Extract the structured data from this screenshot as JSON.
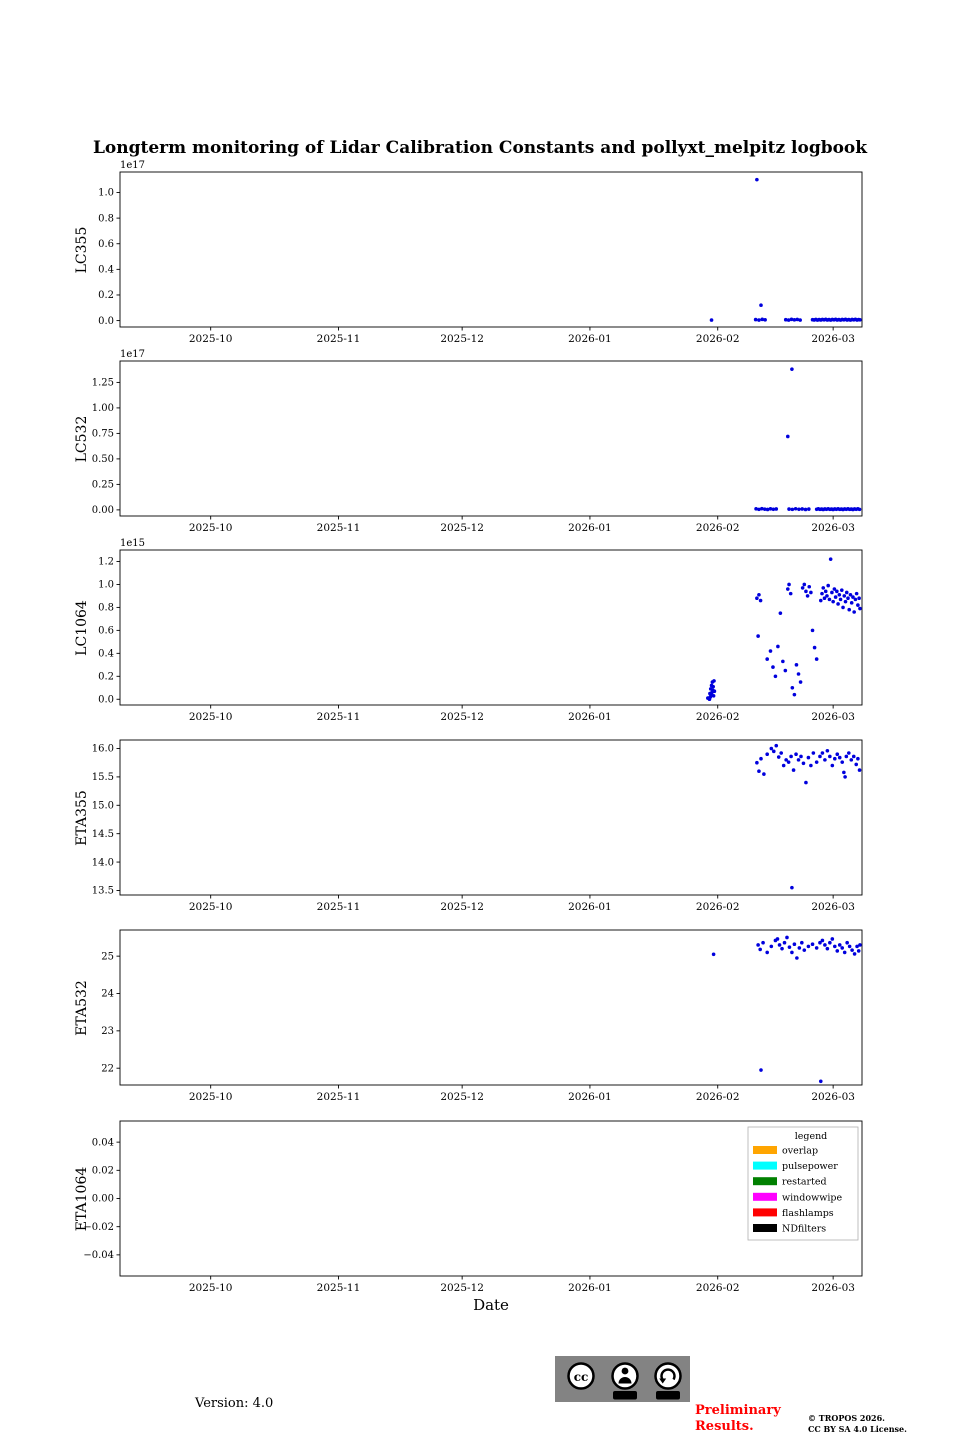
{
  "title": "Longterm monitoring of Lidar Calibration Constants and pollyxt_melpitz logbook",
  "xlabel": "Date",
  "point_color": "#0000dd",
  "x_axis": {
    "xlim": [
      0,
      180
    ],
    "ticks": [
      {
        "pos": 22,
        "label": "2025-10"
      },
      {
        "pos": 53,
        "label": "2025-11"
      },
      {
        "pos": 83,
        "label": "2025-12"
      },
      {
        "pos": 114,
        "label": "2026-01"
      },
      {
        "pos": 145,
        "label": "2026-02"
      },
      {
        "pos": 173,
        "label": "2026-03"
      }
    ]
  },
  "footer": {
    "version": "Version: 4.0",
    "preliminary_line1": "Preliminary",
    "preliminary_line2": "Results.",
    "copyright_line1": "© TROPOS 2026.",
    "copyright_line2": "CC BY SA 4.0 License.",
    "cc_label": "cc",
    "cc_by": "BY",
    "cc_sa": "SA"
  },
  "chart_data": [
    {
      "type": "scatter",
      "ylabel": "LC355",
      "offset_text": "1e17",
      "ylim": [
        -0.05,
        1.16
      ],
      "ytick_values": [
        0.0,
        0.2,
        0.4,
        0.6,
        0.8,
        1.0
      ],
      "ytick_labels": [
        "0.0",
        "0.2",
        "0.4",
        "0.6",
        "0.8",
        "1.0"
      ],
      "points": [
        [
          143.5,
          0.004
        ],
        [
          154.5,
          1.1
        ],
        [
          155.5,
          0.12
        ],
        [
          154.2,
          0.008
        ],
        [
          155.0,
          0.004
        ],
        [
          155.8,
          0.01
        ],
        [
          156.5,
          0.006
        ],
        [
          161.5,
          0.007
        ],
        [
          162.2,
          0.004
        ],
        [
          162.9,
          0.01
        ],
        [
          163.6,
          0.006
        ],
        [
          164.3,
          0.009
        ],
        [
          165.0,
          0.004
        ],
        [
          168.0,
          0.007
        ],
        [
          168.4,
          0.005
        ],
        [
          168.8,
          0.009
        ],
        [
          169.2,
          0.004
        ],
        [
          169.6,
          0.008
        ],
        [
          170.0,
          0.005
        ],
        [
          170.4,
          0.009
        ],
        [
          170.8,
          0.006
        ],
        [
          171.2,
          0.01
        ],
        [
          171.6,
          0.005
        ],
        [
          172.0,
          0.008
        ],
        [
          172.4,
          0.004
        ],
        [
          172.8,
          0.009
        ],
        [
          173.2,
          0.006
        ],
        [
          173.6,
          0.01
        ],
        [
          174.0,
          0.005
        ],
        [
          174.4,
          0.008
        ],
        [
          174.8,
          0.004
        ],
        [
          175.2,
          0.009
        ],
        [
          175.6,
          0.006
        ],
        [
          176.0,
          0.01
        ],
        [
          176.4,
          0.005
        ],
        [
          176.8,
          0.008
        ],
        [
          177.2,
          0.004
        ],
        [
          177.6,
          0.009
        ],
        [
          178.0,
          0.006
        ],
        [
          178.4,
          0.01
        ],
        [
          178.8,
          0.005
        ],
        [
          179.2,
          0.008
        ],
        [
          179.5,
          0.006
        ]
      ]
    },
    {
      "type": "scatter",
      "ylabel": "LC532",
      "offset_text": "1e17",
      "ylim": [
        -0.06,
        1.46
      ],
      "ytick_values": [
        0.0,
        0.25,
        0.5,
        0.75,
        1.0,
        1.25
      ],
      "ytick_labels": [
        "0.00",
        "0.25",
        "0.50",
        "0.75",
        "1.00",
        "1.25"
      ],
      "points": [
        [
          162.0,
          0.72
        ],
        [
          163.0,
          1.38
        ],
        [
          154.3,
          0.01
        ],
        [
          155.0,
          0.005
        ],
        [
          155.7,
          0.012
        ],
        [
          156.4,
          0.007
        ],
        [
          157.1,
          0.004
        ],
        [
          157.8,
          0.01
        ],
        [
          158.5,
          0.006
        ],
        [
          159.2,
          0.009
        ],
        [
          162.3,
          0.008
        ],
        [
          163.1,
          0.005
        ],
        [
          163.9,
          0.011
        ],
        [
          164.7,
          0.006
        ],
        [
          165.5,
          0.009
        ],
        [
          166.3,
          0.004
        ],
        [
          167.1,
          0.008
        ],
        [
          169.0,
          0.006
        ],
        [
          169.4,
          0.01
        ],
        [
          169.8,
          0.005
        ],
        [
          170.2,
          0.008
        ],
        [
          170.6,
          0.004
        ],
        [
          171.0,
          0.009
        ],
        [
          171.4,
          0.006
        ],
        [
          171.8,
          0.011
        ],
        [
          172.2,
          0.005
        ],
        [
          172.6,
          0.008
        ],
        [
          173.0,
          0.004
        ],
        [
          173.4,
          0.009
        ],
        [
          173.8,
          0.006
        ],
        [
          174.2,
          0.01
        ],
        [
          174.6,
          0.005
        ],
        [
          175.0,
          0.008
        ],
        [
          175.4,
          0.004
        ],
        [
          175.8,
          0.009
        ],
        [
          176.2,
          0.006
        ],
        [
          176.6,
          0.01
        ],
        [
          177.0,
          0.005
        ],
        [
          177.4,
          0.008
        ],
        [
          177.8,
          0.004
        ],
        [
          178.2,
          0.009
        ],
        [
          178.6,
          0.006
        ],
        [
          179.0,
          0.01
        ],
        [
          179.4,
          0.005
        ]
      ]
    },
    {
      "type": "scatter",
      "ylabel": "LC1064",
      "offset_text": "1e15",
      "ylim": [
        -0.05,
        1.3
      ],
      "ytick_values": [
        0.0,
        0.2,
        0.4,
        0.6,
        0.8,
        1.0,
        1.2
      ],
      "ytick_labels": [
        "0.0",
        "0.2",
        "0.4",
        "0.6",
        "0.8",
        "1.0",
        "1.2"
      ],
      "points": [
        [
          142.6,
          0.01
        ],
        [
          143.0,
          0.0
        ],
        [
          143.1,
          0.05
        ],
        [
          143.2,
          0.02
        ],
        [
          143.3,
          0.09
        ],
        [
          143.4,
          0.04
        ],
        [
          143.5,
          0.12
        ],
        [
          143.6,
          0.06
        ],
        [
          143.7,
          0.15
        ],
        [
          143.8,
          0.08
        ],
        [
          143.9,
          0.11
        ],
        [
          144.0,
          0.03
        ],
        [
          144.1,
          0.16
        ],
        [
          144.2,
          0.07
        ],
        [
          154.5,
          0.88
        ],
        [
          155.0,
          0.91
        ],
        [
          155.4,
          0.86
        ],
        [
          154.8,
          0.55
        ],
        [
          157.0,
          0.35
        ],
        [
          157.8,
          0.42
        ],
        [
          158.4,
          0.28
        ],
        [
          159.0,
          0.2
        ],
        [
          159.6,
          0.46
        ],
        [
          160.2,
          0.75
        ],
        [
          160.8,
          0.33
        ],
        [
          161.4,
          0.25
        ],
        [
          162.0,
          0.96
        ],
        [
          162.3,
          1.0
        ],
        [
          162.7,
          0.92
        ],
        [
          163.1,
          0.1
        ],
        [
          163.6,
          0.04
        ],
        [
          164.1,
          0.3
        ],
        [
          164.6,
          0.22
        ],
        [
          165.1,
          0.15
        ],
        [
          165.6,
          0.97
        ],
        [
          166.0,
          1.0
        ],
        [
          166.4,
          0.94
        ],
        [
          166.8,
          0.9
        ],
        [
          167.2,
          0.98
        ],
        [
          167.6,
          0.93
        ],
        [
          168.0,
          0.6
        ],
        [
          168.5,
          0.45
        ],
        [
          169.0,
          0.35
        ],
        [
          170.0,
          0.86
        ],
        [
          170.3,
          0.92
        ],
        [
          170.6,
          0.97
        ],
        [
          170.9,
          0.88
        ],
        [
          171.2,
          0.94
        ],
        [
          171.5,
          0.9
        ],
        [
          171.8,
          0.99
        ],
        [
          172.1,
          0.87
        ],
        [
          172.4,
          1.22
        ],
        [
          172.7,
          0.93
        ],
        [
          173.0,
          0.85
        ],
        [
          173.3,
          0.96
        ],
        [
          173.6,
          0.89
        ],
        [
          173.9,
          0.94
        ],
        [
          174.2,
          0.83
        ],
        [
          174.5,
          0.91
        ],
        [
          174.8,
          0.87
        ],
        [
          175.1,
          0.95
        ],
        [
          175.4,
          0.8
        ],
        [
          175.7,
          0.9
        ],
        [
          176.0,
          0.85
        ],
        [
          176.3,
          0.93
        ],
        [
          176.6,
          0.88
        ],
        [
          176.9,
          0.78
        ],
        [
          177.2,
          0.91
        ],
        [
          177.5,
          0.84
        ],
        [
          177.8,
          0.89
        ],
        [
          178.1,
          0.76
        ],
        [
          178.4,
          0.87
        ],
        [
          178.7,
          0.92
        ],
        [
          179.0,
          0.82
        ],
        [
          179.3,
          0.88
        ],
        [
          179.5,
          0.79
        ]
      ]
    },
    {
      "type": "scatter",
      "ylabel": "ETA355",
      "offset_text": "",
      "ylim": [
        13.42,
        16.15
      ],
      "ytick_values": [
        13.5,
        14.0,
        14.5,
        15.0,
        15.5,
        16.0
      ],
      "ytick_labels": [
        "13.5",
        "14.0",
        "14.5",
        "15.0",
        "15.5",
        "16.0"
      ],
      "points": [
        [
          154.5,
          15.75
        ],
        [
          155.0,
          15.6
        ],
        [
          155.5,
          15.82
        ],
        [
          156.2,
          15.55
        ],
        [
          157.0,
          15.9
        ],
        [
          158.0,
          16.0
        ],
        [
          158.6,
          15.95
        ],
        [
          159.2,
          16.05
        ],
        [
          159.8,
          15.85
        ],
        [
          160.4,
          15.92
        ],
        [
          161.0,
          15.7
        ],
        [
          161.6,
          15.8
        ],
        [
          162.2,
          15.76
        ],
        [
          162.8,
          15.86
        ],
        [
          163.0,
          13.55
        ],
        [
          163.4,
          15.62
        ],
        [
          164.0,
          15.9
        ],
        [
          164.6,
          15.8
        ],
        [
          165.2,
          15.86
        ],
        [
          165.8,
          15.74
        ],
        [
          166.4,
          15.4
        ],
        [
          167.0,
          15.84
        ],
        [
          167.6,
          15.7
        ],
        [
          168.2,
          15.92
        ],
        [
          169.0,
          15.76
        ],
        [
          169.8,
          15.86
        ],
        [
          170.4,
          15.92
        ],
        [
          171.0,
          15.8
        ],
        [
          171.6,
          15.96
        ],
        [
          172.2,
          15.86
        ],
        [
          172.8,
          15.7
        ],
        [
          173.4,
          15.82
        ],
        [
          174.0,
          15.9
        ],
        [
          174.6,
          15.84
        ],
        [
          175.2,
          15.76
        ],
        [
          175.6,
          15.58
        ],
        [
          175.9,
          15.5
        ],
        [
          176.2,
          15.86
        ],
        [
          176.8,
          15.92
        ],
        [
          177.4,
          15.8
        ],
        [
          178.0,
          15.86
        ],
        [
          178.6,
          15.72
        ],
        [
          179.0,
          15.82
        ],
        [
          179.4,
          15.62
        ]
      ]
    },
    {
      "type": "scatter",
      "ylabel": "ETA532",
      "offset_text": "",
      "ylim": [
        21.55,
        25.7
      ],
      "ytick_values": [
        22,
        23,
        24,
        25
      ],
      "ytick_labels": [
        "22",
        "23",
        "24",
        "25"
      ],
      "points": [
        [
          144.0,
          25.05
        ],
        [
          155.5,
          21.95
        ],
        [
          170.0,
          21.65
        ],
        [
          154.8,
          25.3
        ],
        [
          155.3,
          25.18
        ],
        [
          156.0,
          25.36
        ],
        [
          157.0,
          25.1
        ],
        [
          158.0,
          25.26
        ],
        [
          159.0,
          25.42
        ],
        [
          159.5,
          25.46
        ],
        [
          160.0,
          25.3
        ],
        [
          160.6,
          25.2
        ],
        [
          161.2,
          25.36
        ],
        [
          161.8,
          25.5
        ],
        [
          162.4,
          25.24
        ],
        [
          163.0,
          25.1
        ],
        [
          163.6,
          25.32
        ],
        [
          164.2,
          24.95
        ],
        [
          164.8,
          25.22
        ],
        [
          165.4,
          25.36
        ],
        [
          166.0,
          25.16
        ],
        [
          167.0,
          25.26
        ],
        [
          168.0,
          25.32
        ],
        [
          169.0,
          25.22
        ],
        [
          169.8,
          25.36
        ],
        [
          170.4,
          25.42
        ],
        [
          171.0,
          25.3
        ],
        [
          171.6,
          25.2
        ],
        [
          172.2,
          25.36
        ],
        [
          172.8,
          25.46
        ],
        [
          173.4,
          25.26
        ],
        [
          174.0,
          25.14
        ],
        [
          174.6,
          25.3
        ],
        [
          175.2,
          25.22
        ],
        [
          175.8,
          25.1
        ],
        [
          176.4,
          25.36
        ],
        [
          177.0,
          25.26
        ],
        [
          177.6,
          25.16
        ],
        [
          178.2,
          25.06
        ],
        [
          178.8,
          25.26
        ],
        [
          179.2,
          25.14
        ],
        [
          179.5,
          25.3
        ]
      ]
    },
    {
      "type": "scatter",
      "ylabel": "ETA1064",
      "offset_text": "",
      "ylim": [
        -0.055,
        0.055
      ],
      "ytick_values": [
        -0.04,
        -0.02,
        0.0,
        0.02,
        0.04
      ],
      "ytick_labels": [
        "−0.04",
        "−0.02",
        "0.00",
        "0.02",
        "0.04"
      ],
      "points": [],
      "legend": {
        "title": "legend",
        "items": [
          {
            "label": "overlap",
            "color": "#ffa500"
          },
          {
            "label": "pulsepower",
            "color": "#00ffff"
          },
          {
            "label": "restarted",
            "color": "#008000"
          },
          {
            "label": "windowwipe",
            "color": "#ff00ff"
          },
          {
            "label": "flashlamps",
            "color": "#ff0000"
          },
          {
            "label": "NDfilters",
            "color": "#000000"
          }
        ]
      }
    }
  ]
}
